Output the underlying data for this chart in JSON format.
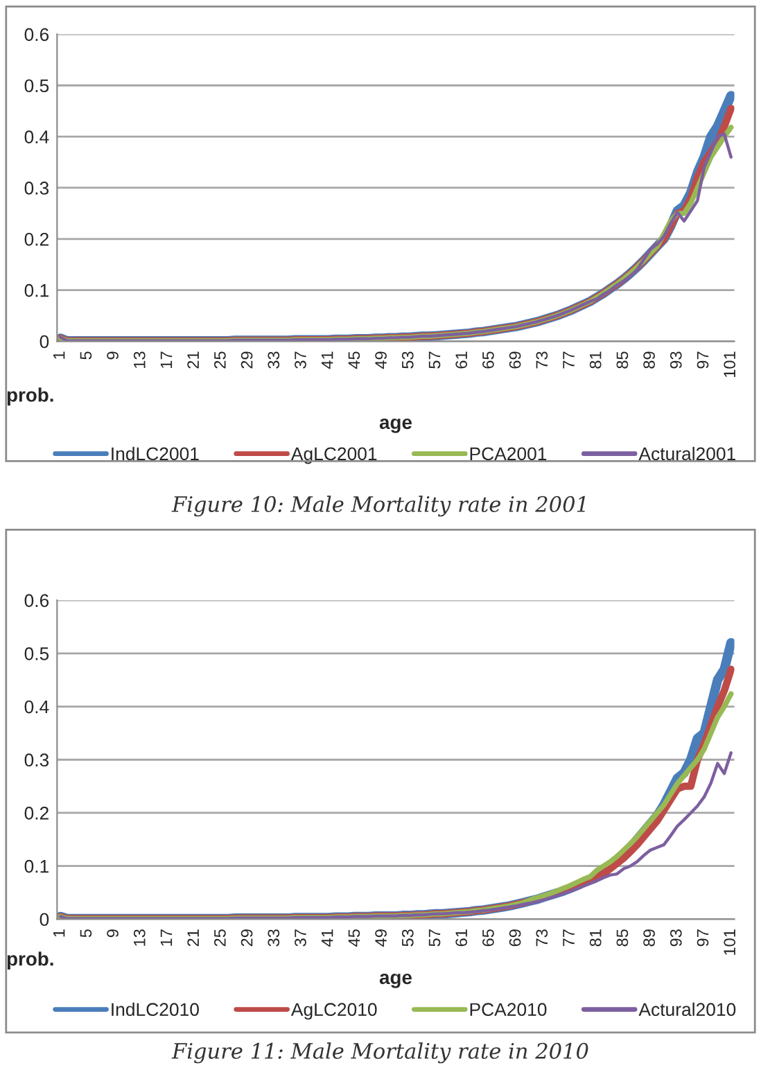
{
  "chart_data": [
    {
      "type": "line",
      "xlabel": "age",
      "ylabel": "prob.",
      "ylim": [
        0,
        0.6
      ],
      "yticks": [
        0,
        0.1,
        0.2,
        0.3,
        0.4,
        0.5,
        0.6
      ],
      "grid": "y",
      "legend": "bottom",
      "marker": "none",
      "line_style": "solid",
      "annotations": [
        "Figure 10: Male Mortality rate in 2001"
      ],
      "categories": [
        "1",
        null,
        null,
        null,
        "5",
        null,
        null,
        null,
        "9",
        null,
        null,
        null,
        "13",
        null,
        null,
        null,
        "17",
        null,
        null,
        null,
        "21",
        null,
        null,
        null,
        "25",
        null,
        null,
        null,
        "29",
        null,
        null,
        null,
        "33",
        null,
        null,
        null,
        "37",
        null,
        null,
        null,
        "41",
        null,
        null,
        null,
        "45",
        null,
        null,
        null,
        "49",
        null,
        null,
        null,
        "53",
        null,
        null,
        null,
        "57",
        null,
        null,
        null,
        "61",
        null,
        null,
        null,
        "65",
        null,
        null,
        null,
        "69",
        null,
        null,
        null,
        "73",
        null,
        null,
        null,
        "77",
        null,
        null,
        null,
        "81",
        null,
        null,
        null,
        "85",
        null,
        null,
        null,
        "89",
        null,
        null,
        null,
        "93",
        null,
        null,
        null,
        "97",
        null,
        null,
        null,
        "101"
      ],
      "series": [
        {
          "name": "IndLC2001",
          "color": "#4a7ebb",
          "values": [
            0.006,
            0.001,
            0.001,
            0.001,
            0.001,
            0.001,
            0.001,
            0.001,
            0.001,
            0.001,
            0.001,
            0.001,
            0.001,
            0.001,
            0.001,
            0.001,
            0.001,
            0.001,
            0.001,
            0.001,
            0.001,
            0.001,
            0.001,
            0.001,
            0.001,
            0.001,
            0.002,
            0.002,
            0.002,
            0.002,
            0.002,
            0.002,
            0.002,
            0.002,
            0.002,
            0.003,
            0.003,
            0.003,
            0.003,
            0.003,
            0.003,
            0.004,
            0.004,
            0.004,
            0.005,
            0.005,
            0.005,
            0.006,
            0.006,
            0.007,
            0.007,
            0.008,
            0.008,
            0.009,
            0.01,
            0.01,
            0.011,
            0.012,
            0.013,
            0.014,
            0.015,
            0.016,
            0.018,
            0.019,
            0.021,
            0.023,
            0.025,
            0.027,
            0.029,
            0.032,
            0.035,
            0.038,
            0.042,
            0.046,
            0.05,
            0.055,
            0.06,
            0.066,
            0.072,
            0.078,
            0.086,
            0.094,
            0.103,
            0.112,
            0.122,
            0.133,
            0.145,
            0.158,
            0.172,
            0.186,
            0.2,
            0.225,
            0.255,
            0.265,
            0.29,
            0.33,
            0.36,
            0.4,
            0.42,
            0.45,
            0.48
          ]
        },
        {
          "name": "AgLC2001",
          "color": "#be4b48",
          "values": [
            0.006,
            0.001,
            0.001,
            0.001,
            0.001,
            0.001,
            0.001,
            0.001,
            0.001,
            0.001,
            0.001,
            0.001,
            0.001,
            0.001,
            0.001,
            0.001,
            0.001,
            0.001,
            0.001,
            0.001,
            0.001,
            0.001,
            0.001,
            0.001,
            0.001,
            0.001,
            0.002,
            0.002,
            0.002,
            0.002,
            0.002,
            0.002,
            0.002,
            0.002,
            0.002,
            0.003,
            0.003,
            0.003,
            0.003,
            0.003,
            0.003,
            0.004,
            0.004,
            0.004,
            0.005,
            0.005,
            0.005,
            0.006,
            0.006,
            0.007,
            0.007,
            0.008,
            0.008,
            0.009,
            0.01,
            0.01,
            0.011,
            0.012,
            0.013,
            0.014,
            0.015,
            0.016,
            0.018,
            0.019,
            0.021,
            0.023,
            0.025,
            0.027,
            0.029,
            0.032,
            0.035,
            0.038,
            0.042,
            0.046,
            0.05,
            0.055,
            0.06,
            0.066,
            0.072,
            0.078,
            0.086,
            0.094,
            0.103,
            0.112,
            0.122,
            0.133,
            0.145,
            0.158,
            0.172,
            0.186,
            0.2,
            0.225,
            0.25,
            0.255,
            0.28,
            0.32,
            0.35,
            0.37,
            0.39,
            0.42,
            0.455
          ]
        },
        {
          "name": "PCA2001",
          "color": "#98b954",
          "values": [
            0.006,
            0.001,
            0.001,
            0.001,
            0.001,
            0.001,
            0.001,
            0.001,
            0.001,
            0.001,
            0.001,
            0.001,
            0.001,
            0.001,
            0.001,
            0.001,
            0.001,
            0.001,
            0.001,
            0.001,
            0.001,
            0.001,
            0.001,
            0.001,
            0.001,
            0.001,
            0.002,
            0.002,
            0.002,
            0.002,
            0.002,
            0.002,
            0.002,
            0.002,
            0.002,
            0.003,
            0.003,
            0.003,
            0.003,
            0.003,
            0.003,
            0.004,
            0.004,
            0.004,
            0.005,
            0.005,
            0.005,
            0.006,
            0.006,
            0.007,
            0.007,
            0.008,
            0.008,
            0.009,
            0.01,
            0.01,
            0.011,
            0.012,
            0.013,
            0.014,
            0.015,
            0.016,
            0.018,
            0.019,
            0.021,
            0.023,
            0.025,
            0.027,
            0.029,
            0.032,
            0.035,
            0.038,
            0.042,
            0.046,
            0.05,
            0.055,
            0.06,
            0.066,
            0.072,
            0.078,
            0.086,
            0.094,
            0.103,
            0.112,
            0.122,
            0.133,
            0.145,
            0.158,
            0.172,
            0.186,
            0.21,
            0.235,
            0.25,
            0.25,
            0.27,
            0.3,
            0.33,
            0.36,
            0.38,
            0.4,
            0.418
          ]
        },
        {
          "name": "Actural2001",
          "color": "#7d60a0",
          "values": [
            0.008,
            0.001,
            0.001,
            0.001,
            0.001,
            0.001,
            0.001,
            0.001,
            0.001,
            0.001,
            0.001,
            0.001,
            0.001,
            0.001,
            0.001,
            0.001,
            0.001,
            0.001,
            0.001,
            0.001,
            0.001,
            0.001,
            0.001,
            0.001,
            0.001,
            0.001,
            0.002,
            0.002,
            0.002,
            0.002,
            0.002,
            0.002,
            0.002,
            0.002,
            0.002,
            0.003,
            0.003,
            0.003,
            0.003,
            0.003,
            0.003,
            0.004,
            0.004,
            0.004,
            0.005,
            0.005,
            0.005,
            0.006,
            0.006,
            0.007,
            0.007,
            0.008,
            0.008,
            0.009,
            0.01,
            0.01,
            0.011,
            0.012,
            0.013,
            0.014,
            0.015,
            0.016,
            0.018,
            0.019,
            0.021,
            0.023,
            0.025,
            0.027,
            0.029,
            0.032,
            0.035,
            0.038,
            0.042,
            0.046,
            0.05,
            0.055,
            0.06,
            0.066,
            0.072,
            0.078,
            0.083,
            0.092,
            0.1,
            0.11,
            0.118,
            0.128,
            0.14,
            0.16,
            0.18,
            0.19,
            0.205,
            0.23,
            0.252,
            0.235,
            0.255,
            0.275,
            0.34,
            0.37,
            0.4,
            0.405,
            0.36
          ]
        }
      ]
    },
    {
      "type": "line",
      "xlabel": "age",
      "ylabel": "prob.",
      "ylim": [
        0,
        0.6
      ],
      "yticks": [
        0,
        0.1,
        0.2,
        0.3,
        0.4,
        0.5,
        0.6
      ],
      "grid": "y",
      "legend": "bottom",
      "marker": "none",
      "line_style": "solid",
      "annotations": [
        "Figure 11: Male Mortality rate in 2010"
      ],
      "categories": [
        "1",
        null,
        null,
        null,
        "5",
        null,
        null,
        null,
        "9",
        null,
        null,
        null,
        "13",
        null,
        null,
        null,
        "17",
        null,
        null,
        null,
        "21",
        null,
        null,
        null,
        "25",
        null,
        null,
        null,
        "29",
        null,
        null,
        null,
        "33",
        null,
        null,
        null,
        "37",
        null,
        null,
        null,
        "41",
        null,
        null,
        null,
        "45",
        null,
        null,
        null,
        "49",
        null,
        null,
        null,
        "53",
        null,
        null,
        null,
        "57",
        null,
        null,
        null,
        "61",
        null,
        null,
        null,
        "65",
        null,
        null,
        null,
        "69",
        null,
        null,
        null,
        "73",
        null,
        null,
        null,
        "77",
        null,
        null,
        null,
        "81",
        null,
        null,
        null,
        "85",
        null,
        null,
        null,
        "89",
        null,
        null,
        null,
        "93",
        null,
        null,
        null,
        "97",
        null,
        null,
        null,
        "101"
      ],
      "series": [
        {
          "name": "IndLC2010",
          "color": "#4a7ebb",
          "values": [
            0.005,
            0.001,
            0.001,
            0.001,
            0.001,
            0.001,
            0.001,
            0.001,
            0.001,
            0.001,
            0.001,
            0.001,
            0.001,
            0.001,
            0.001,
            0.001,
            0.001,
            0.001,
            0.001,
            0.001,
            0.001,
            0.001,
            0.001,
            0.001,
            0.001,
            0.001,
            0.002,
            0.002,
            0.002,
            0.002,
            0.002,
            0.002,
            0.002,
            0.002,
            0.002,
            0.003,
            0.003,
            0.003,
            0.003,
            0.003,
            0.003,
            0.004,
            0.004,
            0.004,
            0.005,
            0.005,
            0.005,
            0.006,
            0.006,
            0.006,
            0.006,
            0.007,
            0.007,
            0.008,
            0.008,
            0.009,
            0.01,
            0.01,
            0.011,
            0.012,
            0.013,
            0.014,
            0.016,
            0.017,
            0.019,
            0.021,
            0.023,
            0.025,
            0.028,
            0.031,
            0.034,
            0.037,
            0.041,
            0.045,
            0.049,
            0.053,
            0.058,
            0.063,
            0.069,
            0.075,
            0.082,
            0.09,
            0.1,
            0.11,
            0.122,
            0.135,
            0.15,
            0.165,
            0.18,
            0.195,
            0.215,
            0.24,
            0.265,
            0.275,
            0.3,
            0.34,
            0.35,
            0.4,
            0.45,
            0.47,
            0.52
          ]
        },
        {
          "name": "AgLC2010",
          "color": "#be4b48",
          "values": [
            0.005,
            0.001,
            0.001,
            0.001,
            0.001,
            0.001,
            0.001,
            0.001,
            0.001,
            0.001,
            0.001,
            0.001,
            0.001,
            0.001,
            0.001,
            0.001,
            0.001,
            0.001,
            0.001,
            0.001,
            0.001,
            0.001,
            0.001,
            0.001,
            0.001,
            0.001,
            0.002,
            0.002,
            0.002,
            0.002,
            0.002,
            0.002,
            0.002,
            0.002,
            0.002,
            0.003,
            0.003,
            0.003,
            0.003,
            0.003,
            0.003,
            0.004,
            0.004,
            0.004,
            0.005,
            0.005,
            0.005,
            0.006,
            0.006,
            0.006,
            0.006,
            0.007,
            0.007,
            0.008,
            0.008,
            0.009,
            0.01,
            0.01,
            0.011,
            0.012,
            0.013,
            0.014,
            0.016,
            0.017,
            0.019,
            0.021,
            0.023,
            0.025,
            0.028,
            0.031,
            0.034,
            0.037,
            0.041,
            0.045,
            0.049,
            0.053,
            0.058,
            0.063,
            0.069,
            0.075,
            0.078,
            0.086,
            0.095,
            0.105,
            0.115,
            0.127,
            0.14,
            0.155,
            0.17,
            0.185,
            0.205,
            0.225,
            0.245,
            0.25,
            0.25,
            0.3,
            0.33,
            0.365,
            0.4,
            0.43,
            0.47
          ]
        },
        {
          "name": "PCA2010",
          "color": "#98b954",
          "values": [
            0.005,
            0.001,
            0.001,
            0.001,
            0.001,
            0.001,
            0.001,
            0.001,
            0.001,
            0.001,
            0.001,
            0.001,
            0.001,
            0.001,
            0.001,
            0.001,
            0.001,
            0.001,
            0.001,
            0.001,
            0.001,
            0.001,
            0.001,
            0.001,
            0.001,
            0.001,
            0.002,
            0.002,
            0.002,
            0.002,
            0.002,
            0.002,
            0.002,
            0.002,
            0.002,
            0.003,
            0.003,
            0.003,
            0.003,
            0.003,
            0.003,
            0.004,
            0.004,
            0.004,
            0.005,
            0.005,
            0.005,
            0.006,
            0.006,
            0.006,
            0.006,
            0.007,
            0.007,
            0.008,
            0.008,
            0.009,
            0.01,
            0.01,
            0.011,
            0.012,
            0.013,
            0.014,
            0.016,
            0.017,
            0.019,
            0.021,
            0.023,
            0.025,
            0.028,
            0.031,
            0.036,
            0.04,
            0.044,
            0.048,
            0.053,
            0.058,
            0.063,
            0.069,
            0.075,
            0.08,
            0.092,
            0.1,
            0.108,
            0.118,
            0.13,
            0.142,
            0.155,
            0.17,
            0.185,
            0.2,
            0.215,
            0.235,
            0.255,
            0.27,
            0.285,
            0.3,
            0.32,
            0.35,
            0.38,
            0.4,
            0.424
          ]
        },
        {
          "name": "Actural2010",
          "color": "#7d60a0",
          "values": [
            0.005,
            0.001,
            0.001,
            0.001,
            0.001,
            0.001,
            0.001,
            0.001,
            0.001,
            0.001,
            0.001,
            0.001,
            0.001,
            0.001,
            0.001,
            0.001,
            0.001,
            0.001,
            0.001,
            0.001,
            0.001,
            0.001,
            0.001,
            0.001,
            0.001,
            0.001,
            0.002,
            0.002,
            0.002,
            0.002,
            0.002,
            0.002,
            0.002,
            0.002,
            0.002,
            0.003,
            0.003,
            0.003,
            0.003,
            0.003,
            0.003,
            0.004,
            0.004,
            0.004,
            0.005,
            0.005,
            0.005,
            0.006,
            0.006,
            0.006,
            0.006,
            0.007,
            0.007,
            0.008,
            0.008,
            0.009,
            0.01,
            0.01,
            0.011,
            0.012,
            0.012,
            0.013,
            0.014,
            0.016,
            0.017,
            0.019,
            0.021,
            0.023,
            0.025,
            0.028,
            0.03,
            0.033,
            0.036,
            0.04,
            0.044,
            0.048,
            0.052,
            0.057,
            0.062,
            0.067,
            0.072,
            0.078,
            0.083,
            0.085,
            0.095,
            0.1,
            0.108,
            0.12,
            0.13,
            0.135,
            0.14,
            0.157,
            0.175,
            0.187,
            0.2,
            0.213,
            0.23,
            0.256,
            0.293,
            0.274,
            0.313
          ]
        }
      ]
    }
  ]
}
